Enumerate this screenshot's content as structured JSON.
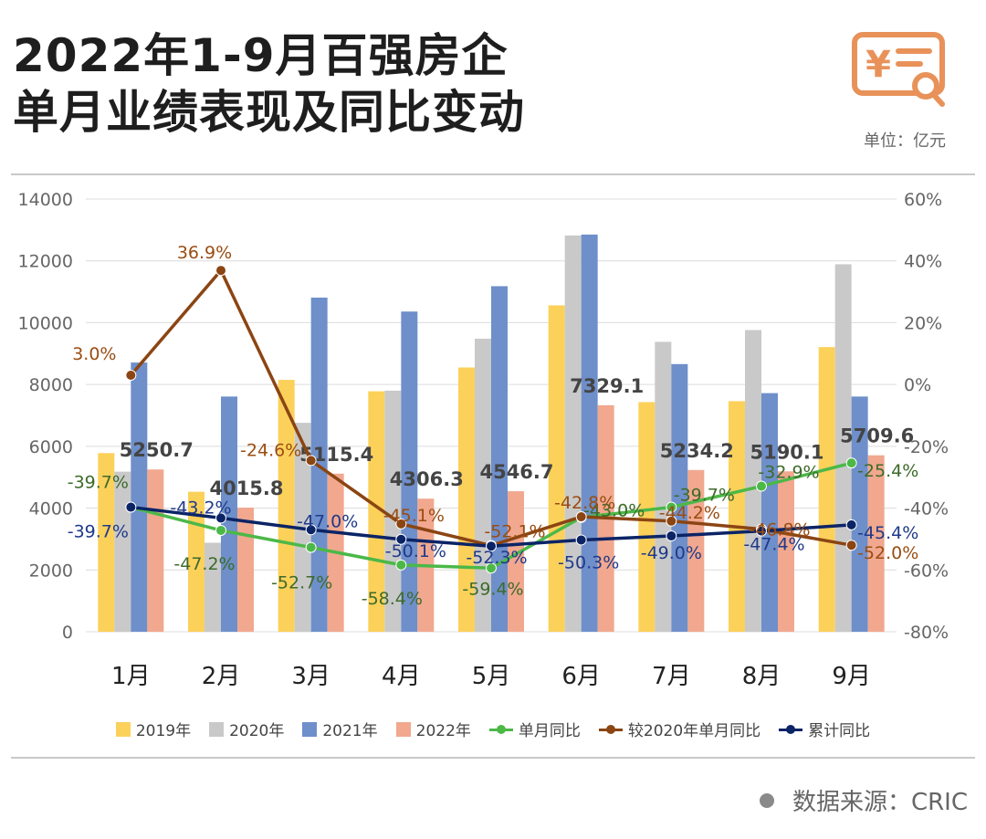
{
  "header": {
    "title_line1": "2022年1-9月百强房企",
    "title_line2": "单月业绩表现及同比变动",
    "unit": "单位：亿元",
    "logo_icon": "yuan-document-search-icon",
    "accent_color": "#e8925a"
  },
  "footer": {
    "source": "数据来源：CRIC"
  },
  "chart_data": {
    "type": "bar",
    "categories": [
      "1月",
      "2月",
      "3月",
      "4月",
      "5月",
      "6月",
      "7月",
      "8月",
      "9月"
    ],
    "series": [
      {
        "name": "2019年",
        "kind": "bar",
        "axis": "left",
        "color": "#fcd15a",
        "values": [
          5780,
          4530,
          8150,
          7780,
          8550,
          10560,
          7430,
          7460,
          9210
        ]
      },
      {
        "name": "2020年",
        "kind": "bar",
        "axis": "left",
        "color": "#c9c9c9",
        "values": [
          5180,
          2880,
          6760,
          7800,
          9480,
          12820,
          9380,
          9760,
          11890
        ]
      },
      {
        "name": "2021年",
        "kind": "bar",
        "axis": "left",
        "color": "#6e8fca",
        "values": [
          8710,
          7610,
          10810,
          10360,
          11180,
          12850,
          8660,
          7720,
          7610
        ]
      },
      {
        "name": "2022年",
        "kind": "bar",
        "axis": "left",
        "color": "#f1a88f",
        "values": [
          5250.7,
          4015.8,
          5115.4,
          4306.3,
          4546.7,
          7329.1,
          5234.2,
          5190.1,
          5709.6
        ],
        "labels": [
          "5250.7",
          "4015.8",
          "5115.4",
          "4306.3",
          "4546.7",
          "7329.1",
          "5234.2",
          "5190.1",
          "5709.6"
        ]
      },
      {
        "name": "单月同比",
        "kind": "line",
        "axis": "right",
        "color": "#4cb848",
        "label_color": "#3d6b2a",
        "values": [
          -39.7,
          -47.2,
          -52.7,
          -58.4,
          -59.4,
          -43.0,
          -39.7,
          -32.9,
          -25.4
        ],
        "labels": [
          "-39.7%",
          "-47.2%",
          "-52.7%",
          "-58.4%",
          "-59.4%",
          "-43.0%",
          "-39.7%",
          "-32.9%",
          "-25.4%"
        ]
      },
      {
        "name": "较2020年单月同比",
        "kind": "line",
        "axis": "right",
        "color": "#8b4513",
        "label_color": "#9a4d12",
        "values": [
          3.0,
          36.9,
          -24.6,
          -45.1,
          -52.1,
          -42.8,
          -44.2,
          -46.8,
          -52.0
        ],
        "labels": [
          "3.0%",
          "36.9%",
          "-24.6%",
          "-45.1%",
          "-52.1%",
          "-42.8%",
          "-44.2%",
          "-46.8%",
          "-52.0%"
        ]
      },
      {
        "name": "累计同比",
        "kind": "line",
        "axis": "right",
        "color": "#0b2466",
        "label_color": "#1f3a8a",
        "values": [
          -39.7,
          -43.2,
          -47.0,
          -50.1,
          -52.3,
          -50.3,
          -49.0,
          -47.4,
          -45.4
        ],
        "labels": [
          "-39.7%",
          "-43.2%",
          "-47.0%",
          "-50.1%",
          "-52.3%",
          "-50.3%",
          "-49.0%",
          "-47.4%",
          "-45.4%"
        ]
      }
    ],
    "y_left": {
      "min": 0,
      "max": 14000,
      "ticks": [
        "0",
        "2000",
        "4000",
        "6000",
        "8000",
        "10000",
        "12000",
        "14000"
      ]
    },
    "y_right": {
      "min": -80,
      "max": 60,
      "ticks": [
        "-80%",
        "-60%",
        "-40%",
        "-20%",
        "0%",
        "20%",
        "40%",
        "60%"
      ]
    },
    "grid": true,
    "legend_position": "bottom"
  }
}
